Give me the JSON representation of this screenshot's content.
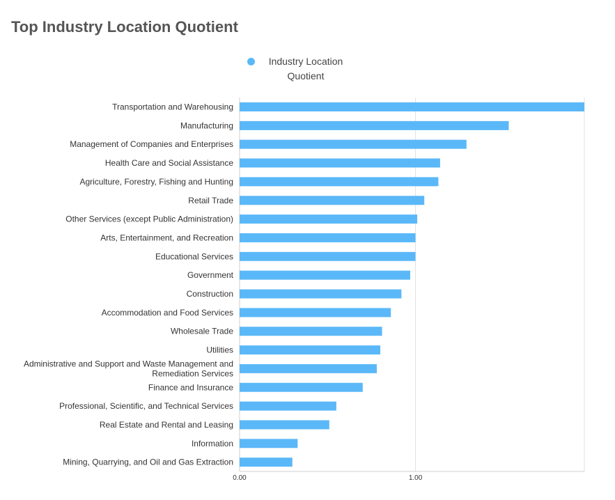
{
  "title": "Top Industry Location Quotient",
  "legend": {
    "label": "Industry Location Quotient",
    "color": "#5bb8f8"
  },
  "chart_data": {
    "type": "bar",
    "orientation": "horizontal",
    "categories": [
      "Transportation and Warehousing",
      "Manufacturing",
      "Management of Companies and Enterprises",
      "Health Care and Social Assistance",
      "Agriculture, Forestry, Fishing and Hunting",
      "Retail Trade",
      "Other Services (except Public Administration)",
      "Arts, Entertainment, and Recreation",
      "Educational Services",
      "Government",
      "Construction",
      "Accommodation and Food Services",
      "Wholesale Trade",
      "Utilities",
      "Administrative and Support and Waste Management and Remediation Services",
      "Finance and Insurance",
      "Professional, Scientific, and Technical Services",
      "Real Estate and Rental and Leasing",
      "Information",
      "Mining, Quarrying, and Oil and Gas Extraction"
    ],
    "series": [
      {
        "name": "Industry Location Quotient",
        "values": [
          1.96,
          1.53,
          1.29,
          1.14,
          1.13,
          1.05,
          1.01,
          1.0,
          1.0,
          0.97,
          0.92,
          0.86,
          0.81,
          0.8,
          0.78,
          0.7,
          0.55,
          0.51,
          0.33,
          0.3
        ]
      }
    ],
    "xlim": [
      0,
      1.96
    ],
    "xticks": [
      0,
      1
    ],
    "xtick_labels": [
      "0.00",
      "1.00"
    ],
    "color": "#5bb8f8",
    "grid": true,
    "legend_position": "top-center"
  }
}
